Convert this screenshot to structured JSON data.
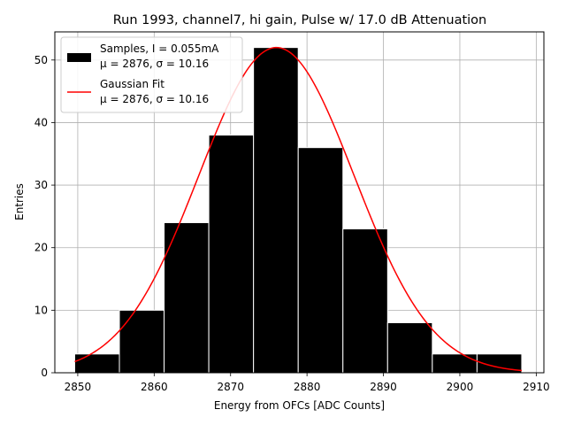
{
  "chart_data": {
    "type": "bar",
    "title": "Run 1993, channel7, hi gain, Pulse w/ 17.0 dB Attenuation",
    "xlabel": "Energy from OFCs [ADC Counts]",
    "ylabel": "Entries",
    "xlim": [
      2847,
      2911
    ],
    "ylim": [
      0,
      54.5
    ],
    "xticks": [
      2850,
      2860,
      2870,
      2880,
      2890,
      2900,
      2910
    ],
    "yticks": [
      0,
      10,
      20,
      30,
      40,
      50
    ],
    "grid": true,
    "legend_position": "top-left",
    "bin_edges": [
      2849.6,
      2855.45,
      2861.3,
      2867.15,
      2873.0,
      2878.85,
      2884.7,
      2890.55,
      2896.4,
      2902.25,
      2908.1
    ],
    "values": [
      3,
      10,
      24,
      38,
      52,
      36,
      23,
      8,
      3,
      3
    ],
    "fit": {
      "mu": 2876,
      "sigma": 10.16,
      "amplitude": 52,
      "range": [
        2849.6,
        2908.1
      ]
    },
    "series": [
      {
        "name": "Samples, I = 0.055mA",
        "stats": "μ = 2876, σ = 10.16",
        "color": "#000000"
      },
      {
        "name": "Gaussian Fit",
        "stats": "μ = 2876, σ = 10.16",
        "color": "#ff0000"
      }
    ]
  }
}
